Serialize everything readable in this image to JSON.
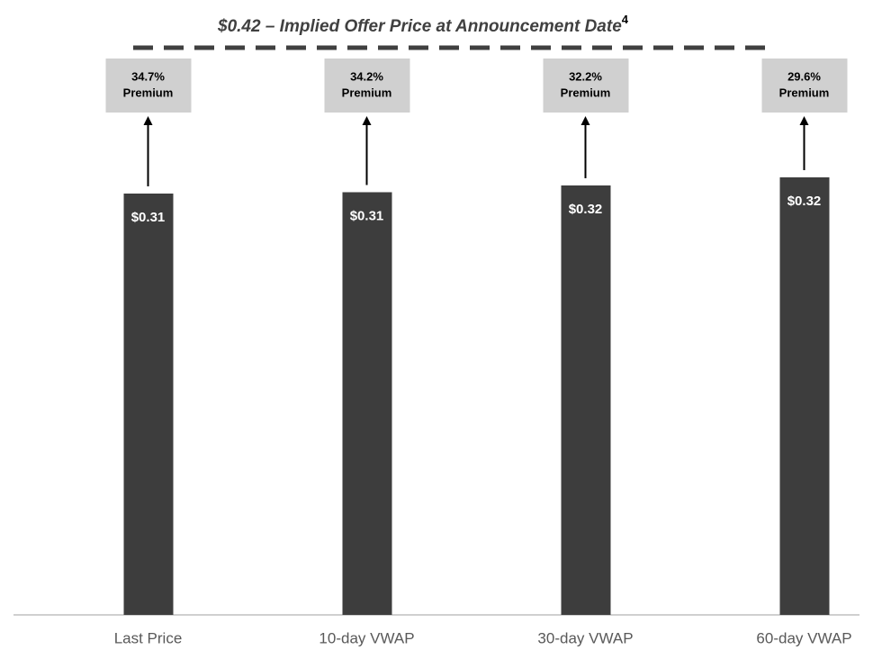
{
  "chart_data": {
    "type": "bar",
    "title": "$0.42 – Implied Offer Price at Announcement Date",
    "title_footnote": "4",
    "offer_price": 0.42,
    "categories": [
      "Last Price",
      "10-day VWAP",
      "30-day VWAP",
      "60-day VWAP"
    ],
    "values": [
      0.312,
      0.313,
      0.318,
      0.324
    ],
    "value_labels": [
      "$0.31",
      "$0.31",
      "$0.32",
      "$0.32"
    ],
    "premium_labels": [
      "34.7%",
      "34.2%",
      "32.2%",
      "29.6%"
    ],
    "premium_text": "Premium",
    "color": "#3d3d3d",
    "premium_box_color": "#d0d0d0",
    "ylim": [
      0,
      0.45
    ]
  }
}
